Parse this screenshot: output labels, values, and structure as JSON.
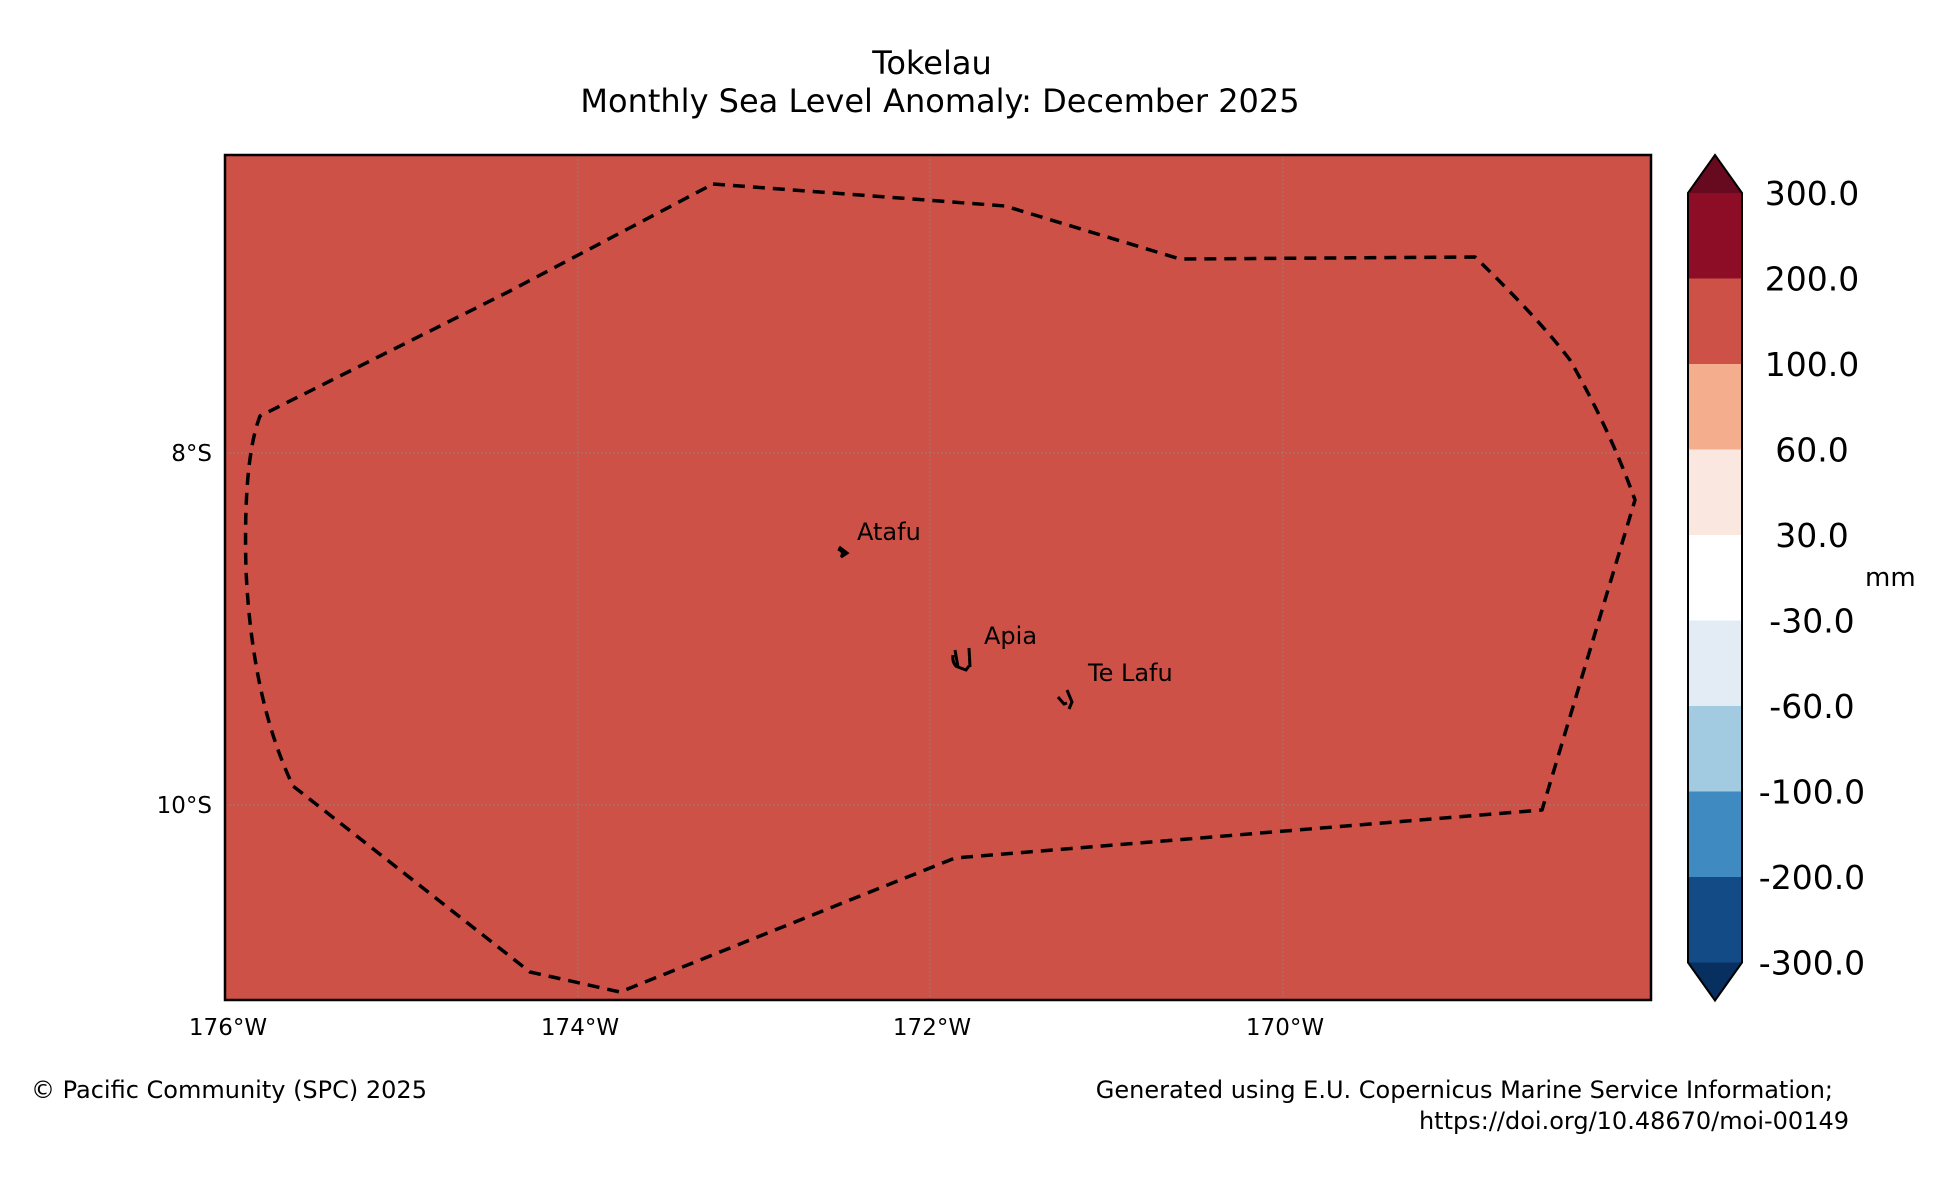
{
  "title": {
    "line1": "Tokelau",
    "line2": "Monthly Sea Level Anomaly: December 2025"
  },
  "map": {
    "background_color": "#cd5146",
    "lon_ticks": [
      {
        "value": -176,
        "label": "176°W"
      },
      {
        "value": -174,
        "label": "174°W"
      },
      {
        "value": -172,
        "label": "172°W"
      },
      {
        "value": -170,
        "label": "170°W"
      }
    ],
    "lat_ticks": [
      {
        "value": -8,
        "label": "8°S"
      },
      {
        "value": -10,
        "label": "10°S"
      }
    ],
    "places": [
      {
        "name": "Atafu"
      },
      {
        "name": "Apia"
      },
      {
        "name": "Te Lafu"
      }
    ]
  },
  "colorbar": {
    "unit": "mm",
    "levels": [
      "300.0",
      "200.0",
      "100.0",
      "60.0",
      "30.0",
      "-30.0",
      "-60.0",
      "-100.0",
      "-200.0",
      "-300.0"
    ],
    "colors": [
      "#670a1f",
      "#8e0d26",
      "#cd5146",
      "#f4ae8e",
      "#fae8e0",
      "#ffffff",
      "#e3ecf4",
      "#a2cbe2",
      "#3e8ac1",
      "#134b86",
      "#072f5f"
    ]
  },
  "footer": {
    "copyright": "© Pacific Community (SPC) 2025",
    "credit_line1": "Generated using E.U. Copernicus Marine Service Information;",
    "credit_line2": "https://doi.org/10.48670/moi-00149"
  }
}
